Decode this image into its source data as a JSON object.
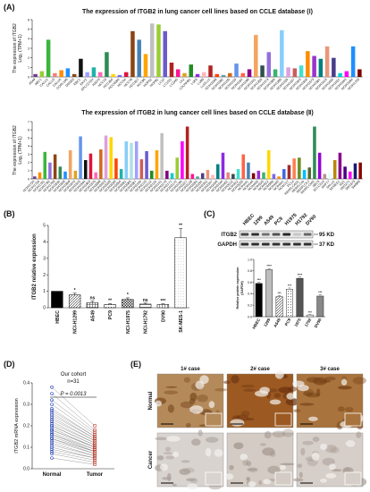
{
  "panels": {
    "A": "(A)",
    "B": "(B)",
    "C": "(C)",
    "D": "(D)",
    "E": "(E)"
  },
  "chart_data": [
    {
      "id": "A1",
      "type": "bar",
      "title": "The expression of ITGB2 in lung cancer cell lines based on CCLE database (Ⅰ)",
      "ylabel": "The expression of ITGB2",
      "ylabel2": "Log₂ (TPM+1)",
      "ylim": [
        0,
        6
      ],
      "yticks": [
        0,
        1,
        2,
        3,
        4,
        5,
        6
      ],
      "categories": [
        "A549",
        "ABC1",
        "CALU1",
        "CALU3",
        "CALU6",
        "CORL105",
        "DMS53",
        "EBC1",
        "EKVX",
        "EPLC272H",
        "H2073",
        "HCC15",
        "HCC366",
        "HCC4006",
        "HCC44",
        "HCC78",
        "HCC827",
        "HCC95",
        "HOP62",
        "HOP92",
        "LC1F",
        "LC1SQ",
        "LC2AD",
        "LK2",
        "LOUNH91",
        "LU65",
        "LU99",
        "LUDLU1",
        "NCIH1048",
        "NCIH1092",
        "NCIH1105",
        "NCIH1155",
        "NCIH1184",
        "NCIH1299",
        "NCIH1341",
        "NCIH1355",
        "NCIH1373",
        "NCIH1385",
        "NCIH1395",
        "NCIH1435",
        "NCIH1437",
        "NCIH1563",
        "NCIH1568",
        "NCIH1573",
        "NCIH1581",
        "NCIH1623",
        "NCIH1650",
        "NCIH1651",
        "NCIH1666",
        "NCIH1694",
        "NCIH1703"
      ],
      "values": [
        0.3,
        0.6,
        3.9,
        0.4,
        0.7,
        0.9,
        0.3,
        1.9,
        0.5,
        1.0,
        0.5,
        2.6,
        0.3,
        0.2,
        0.5,
        4.8,
        3.9,
        2.4,
        5.6,
        5.5,
        4.8,
        1.5,
        0.8,
        0.4,
        1.3,
        0.3,
        0.5,
        1.2,
        0.3,
        0.2,
        0.4,
        1.4,
        0.4,
        0.8,
        4.4,
        1.2,
        2.6,
        0.8,
        4.9,
        1.0,
        0.9,
        1.2,
        2.7,
        2.2,
        1.9,
        3.2,
        2.0,
        0.4,
        0.6,
        3.2,
        0.8
      ],
      "colors": [
        "#6e3b8e",
        "#9acd32",
        "#3cb63c",
        "#f08080",
        "#ff8c00",
        "#1e90ff",
        "#8b4513",
        "#111111",
        "#a0a0ff",
        "#20b2aa",
        "#ff69b4",
        "#2e8b57",
        "#ffd700",
        "#7b68ee",
        "#dc143c",
        "#8b4513",
        "#4682b4",
        "#ffa500",
        "#c0c0c0",
        "#9acd32",
        "#6a5acd",
        "#b22222",
        "#ff1493",
        "#daa520",
        "#228b22",
        "#8a2be2",
        "#ffb6c1",
        "#b22222",
        "#ff4500",
        "#5f9ea0",
        "#d2691e",
        "#6495ed",
        "#ff6347",
        "#8b008b",
        "#f4a460",
        "#2f4f4f",
        "#9370db",
        "#3cb371",
        "#87cefa",
        "#dda0dd",
        "#cd5c5c",
        "#40e0d0",
        "#ff8c00",
        "#9932cc",
        "#008080",
        "#e9967a",
        "#483d8b",
        "#00ced1",
        "#ff00ff",
        "#1e90ff",
        "#800000"
      ]
    },
    {
      "id": "A2",
      "type": "bar",
      "title": "The expression of ITGB2 in lung cancer cell lines based on CCLE database (Ⅱ)",
      "ylabel": "The expression of ITGB2",
      "ylabel2": "Log₂ (TPM+1)",
      "ylim": [
        0,
        7
      ],
      "yticks": [
        0,
        1,
        2,
        3,
        4,
        5,
        6,
        7
      ],
      "categories": [
        "NCIH1734",
        "NCIH1755",
        "NCIH1781",
        "NCIH1792",
        "NCIH1793",
        "NCIH1836",
        "NCIH1838",
        "NCIH1869",
        "NCIH1876",
        "NCIH1915",
        "NCIH1944",
        "NCIH1963",
        "NCIH1975",
        "NCIH2009",
        "NCIH2023",
        "NCIH2029",
        "NCIH2030",
        "NCIH2066",
        "NCIH2081",
        "NCIH2085",
        "NCIH2087",
        "NCIH2106",
        "NCIH2110",
        "NCIH2122",
        "NCIH2126",
        "NCIH2141",
        "NCIH2170",
        "NCIH2171",
        "NCIH2172",
        "NCIH2196",
        "NCIH2227",
        "NCIH2228",
        "NCIH2286",
        "NCIH2291",
        "NCIH2342",
        "NCIH2347",
        "NCIH2405",
        "NCIH2444",
        "NCIH2452",
        "NCIH3122",
        "NCIH322",
        "NCIH3255",
        "NCIH441",
        "NCIH446",
        "NCIH460",
        "NCIH520",
        "NCIH522",
        "NCIH596",
        "NCIH650",
        "NCIH661",
        "NCIH727",
        "PC14",
        "RERFLCAD1",
        "RERFLCAI",
        "RERFLCKJ",
        "RERFLCMS",
        "SBC5",
        "SCLC21H",
        "SHP77",
        "SKLU1",
        "SKMES1",
        "SQ1",
        "SW1271",
        "SW1573",
        "SW900"
      ],
      "values": [
        0.3,
        0.8,
        3.3,
        2.0,
        3.0,
        1.5,
        0.9,
        3.5,
        1.0,
        5.2,
        2.3,
        3.1,
        0.8,
        3.6,
        5.3,
        5.1,
        2.5,
        1.2,
        4.6,
        4.4,
        4.6,
        2.4,
        3.4,
        1.0,
        3.5,
        5.6,
        1.0,
        0.7,
        2.6,
        4.6,
        6.4,
        0.6,
        0.3,
        0.7,
        1.1,
        0.5,
        1.8,
        3.2,
        0.8,
        0.6,
        1.2,
        3.0,
        2.0,
        0.7,
        1.0,
        0.8,
        3.5,
        0.6,
        0.3,
        1.2,
        1.7,
        2.5,
        2.6,
        1.1,
        1.4,
        6.4,
        3.2,
        0.6,
        0.7,
        2.3,
        3.2,
        1.5,
        0.9,
        1.9,
        2.0
      ],
      "colors": [
        "#6e3b8e",
        "#ff8c00",
        "#3cb63c",
        "#9370db",
        "#8b4513",
        "#2e8b57",
        "#1e90ff",
        "#f4a460",
        "#daa520",
        "#6495ed",
        "#111111",
        "#dc143c",
        "#ff69b4",
        "#d2691e",
        "#dda0dd",
        "#ffd700",
        "#ff4500",
        "#20b2aa",
        "#87cefa",
        "#b0e0e6",
        "#a0a0ff",
        "#cd5c5c",
        "#6a5acd",
        "#228b22",
        "#ffa500",
        "#c0c0c0",
        "#800080",
        "#00ced1",
        "#9acd32",
        "#ff00ff",
        "#b22222",
        "#ff1493",
        "#5f9ea0",
        "#483d8b",
        "#e9967a",
        "#ffb6c1",
        "#008080",
        "#8a2be2",
        "#f08080",
        "#2f4f4f",
        "#40e0d0",
        "#ff6347",
        "#4682b4",
        "#800000",
        "#9932cc",
        "#3cb371",
        "#ffd700",
        "#7b68ee",
        "#ff8c00",
        "#4169e1",
        "#a52a2a",
        "#ff7f50",
        "#6b8e23",
        "#00bfff",
        "#556b2f",
        "#2e8b57",
        "#9400d3",
        "#bc8f8f",
        "#e0ffff",
        "#b8860b",
        "#8b008b",
        "#4b0082",
        "#ff00ff",
        "#191970",
        "#8b0000"
      ]
    },
    {
      "id": "B",
      "type": "bar",
      "ylabel": "ITGB2 relative expression",
      "ylim": [
        0,
        5
      ],
      "yticks": [
        0,
        1,
        2,
        3,
        4,
        5
      ],
      "categories": [
        "HBEC",
        "NCI-H1299",
        "A549",
        "PC9",
        "NCI-H1975",
        "NCI-H1792",
        "DV90",
        "SK-MES-1"
      ],
      "values": [
        1.0,
        0.78,
        0.3,
        0.2,
        0.5,
        0.22,
        0.2,
        4.25
      ],
      "errors": [
        0,
        0.1,
        0.1,
        0.04,
        0.1,
        0.06,
        0.03,
        0.55
      ],
      "significance": [
        "",
        "*",
        "ns",
        "**",
        "*",
        "ns",
        "***",
        "**"
      ]
    },
    {
      "id": "C",
      "type": "bar",
      "ylabel": "Relative protein expression",
      "ylabel2": "(GAPDH)",
      "ylim": [
        0,
        1.0
      ],
      "yticks": [
        0.0,
        0.2,
        0.4,
        0.6,
        0.8,
        1.0
      ],
      "categories": [
        "HBEC",
        "1299",
        "A549",
        "PC9",
        "1975",
        "1792",
        "DV90"
      ],
      "values": [
        0.58,
        0.82,
        0.35,
        0.48,
        0.67,
        0.03,
        0.36
      ],
      "errors": [
        0.02,
        0.02,
        0.02,
        0.02,
        0.02,
        0.005,
        0.02
      ],
      "significance": [
        "***",
        "****",
        "***",
        "***",
        "****",
        "***",
        "***"
      ]
    },
    {
      "id": "D",
      "type": "scatter",
      "title": "Our cohort",
      "subtitle": "n=31",
      "pvalue": "P = 0.0013",
      "ylabel": "ITGB2 mRNA expression",
      "ylim": [
        0.0,
        0.4
      ],
      "yticks": [
        0.0,
        0.1,
        0.2,
        0.3,
        0.4
      ],
      "categories": [
        "Normal",
        "Tumor"
      ],
      "normal": [
        0.38,
        0.35,
        0.32,
        0.3,
        0.28,
        0.27,
        0.26,
        0.25,
        0.24,
        0.23,
        0.22,
        0.21,
        0.2,
        0.2,
        0.19,
        0.18,
        0.18,
        0.17,
        0.16,
        0.16,
        0.15,
        0.14,
        0.14,
        0.13,
        0.12,
        0.11,
        0.1,
        0.09,
        0.08,
        0.07,
        0.05
      ],
      "tumor": [
        0.2,
        0.18,
        0.17,
        0.16,
        0.15,
        0.15,
        0.14,
        0.14,
        0.13,
        0.13,
        0.12,
        0.12,
        0.11,
        0.11,
        0.1,
        0.1,
        0.1,
        0.09,
        0.09,
        0.08,
        0.08,
        0.08,
        0.07,
        0.07,
        0.06,
        0.06,
        0.05,
        0.05,
        0.04,
        0.03,
        0.02
      ]
    }
  ],
  "blot": {
    "lanes": [
      "HBEC",
      "1299",
      "A549",
      "PC9",
      "H1975",
      "H1792",
      "DV90"
    ],
    "rows": [
      {
        "name": "ITGB2",
        "size": "95 KD"
      },
      {
        "name": "GAPDH",
        "size": "37 KD"
      }
    ]
  },
  "ihc": {
    "cols": [
      "1# case",
      "2# case",
      "3# case"
    ],
    "rows": [
      "Normal",
      "Cancer"
    ]
  }
}
